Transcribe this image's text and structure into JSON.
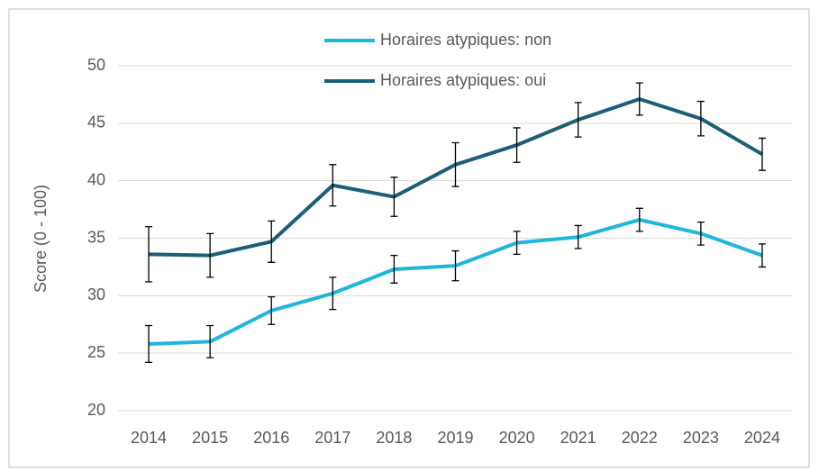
{
  "chart_data": {
    "type": "line",
    "y_label": "Score (0 - 100)",
    "categories": [
      "2014",
      "2015",
      "2016",
      "2017",
      "2018",
      "2019",
      "2020",
      "2021",
      "2022",
      "2023",
      "2024"
    ],
    "series": [
      {
        "name": "Horaires atypiques: non",
        "color": "#1fb6de",
        "values": [
          25.8,
          26.0,
          28.7,
          30.2,
          32.3,
          32.6,
          34.6,
          35.1,
          36.6,
          35.4,
          33.5
        ],
        "errors": [
          1.6,
          1.4,
          1.2,
          1.4,
          1.2,
          1.3,
          1.0,
          1.0,
          1.0,
          1.0,
          1.0
        ]
      },
      {
        "name": "Horaires atypiques: oui",
        "color": "#1b5e78",
        "values": [
          33.6,
          33.5,
          34.7,
          39.6,
          38.6,
          41.4,
          43.1,
          45.3,
          47.1,
          45.4,
          42.3
        ],
        "errors": [
          2.4,
          1.9,
          1.8,
          1.8,
          1.7,
          1.9,
          1.5,
          1.5,
          1.4,
          1.5,
          1.4
        ]
      }
    ],
    "ylim": [
      20,
      50
    ],
    "yticks": [
      20,
      25,
      30,
      35,
      40,
      45,
      50
    ],
    "grid": true
  }
}
